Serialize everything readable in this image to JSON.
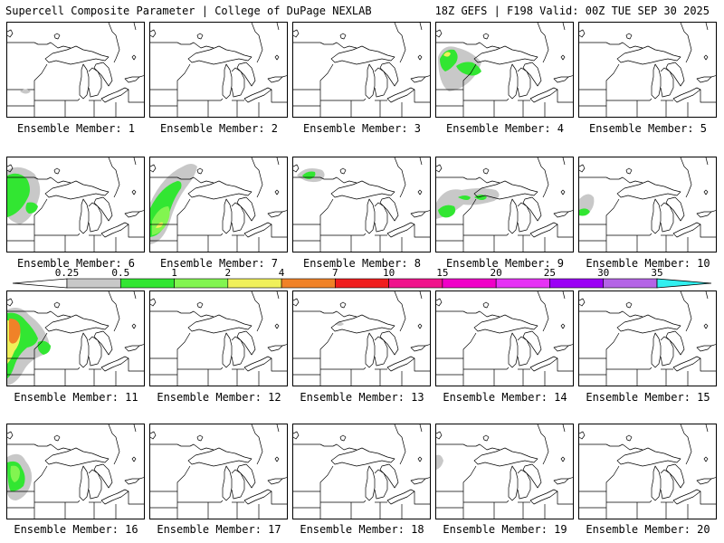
{
  "header": {
    "left": "Supercell Composite Parameter | College of DuPage NEXLAB",
    "right": "18Z GEFS | F198 Valid: 00Z TUE SEP 30 2025"
  },
  "colors": {
    "lt_gray": "#c8c8c8",
    "green": "#32e632",
    "lt_green": "#82f550",
    "yellow": "#f0f05a",
    "orange": "#f08228",
    "red": "#f01e1e",
    "pink": "#f0148c",
    "magenta": "#f000c8",
    "violet": "#e632f5",
    "purple": "#9b00f5",
    "lavender": "#b464e6",
    "cyan": "#32f0f0"
  },
  "scale": {
    "labels": [
      "0.25",
      "0.5",
      "1",
      "2",
      "4",
      "7",
      "10",
      "15",
      "20",
      "25",
      "30",
      "35"
    ],
    "segment_colors": [
      "#c8c8c8",
      "#32e632",
      "#82f550",
      "#f0f05a",
      "#f08228",
      "#f01e1e",
      "#f0148c",
      "#f000c8",
      "#e632f5",
      "#9b00f5",
      "#b464e6"
    ]
  },
  "members": [
    {
      "label": "Ensemble Member: 1"
    },
    {
      "label": "Ensemble Member: 2"
    },
    {
      "label": "Ensemble Member: 3"
    },
    {
      "label": "Ensemble Member: 4"
    },
    {
      "label": "Ensemble Member: 5"
    },
    {
      "label": "Ensemble Member: 6"
    },
    {
      "label": "Ensemble Member: 7"
    },
    {
      "label": "Ensemble Member: 8"
    },
    {
      "label": "Ensemble Member: 9"
    },
    {
      "label": "Ensemble Member: 10"
    },
    {
      "label": "Ensemble Member: 11"
    },
    {
      "label": "Ensemble Member: 12"
    },
    {
      "label": "Ensemble Member: 13"
    },
    {
      "label": "Ensemble Member: 14"
    },
    {
      "label": "Ensemble Member: 15"
    },
    {
      "label": "Ensemble Member: 16"
    },
    {
      "label": "Ensemble Member: 17"
    },
    {
      "label": "Ensemble Member: 18"
    },
    {
      "label": "Ensemble Member: 19"
    },
    {
      "label": "Ensemble Member: 20"
    }
  ]
}
